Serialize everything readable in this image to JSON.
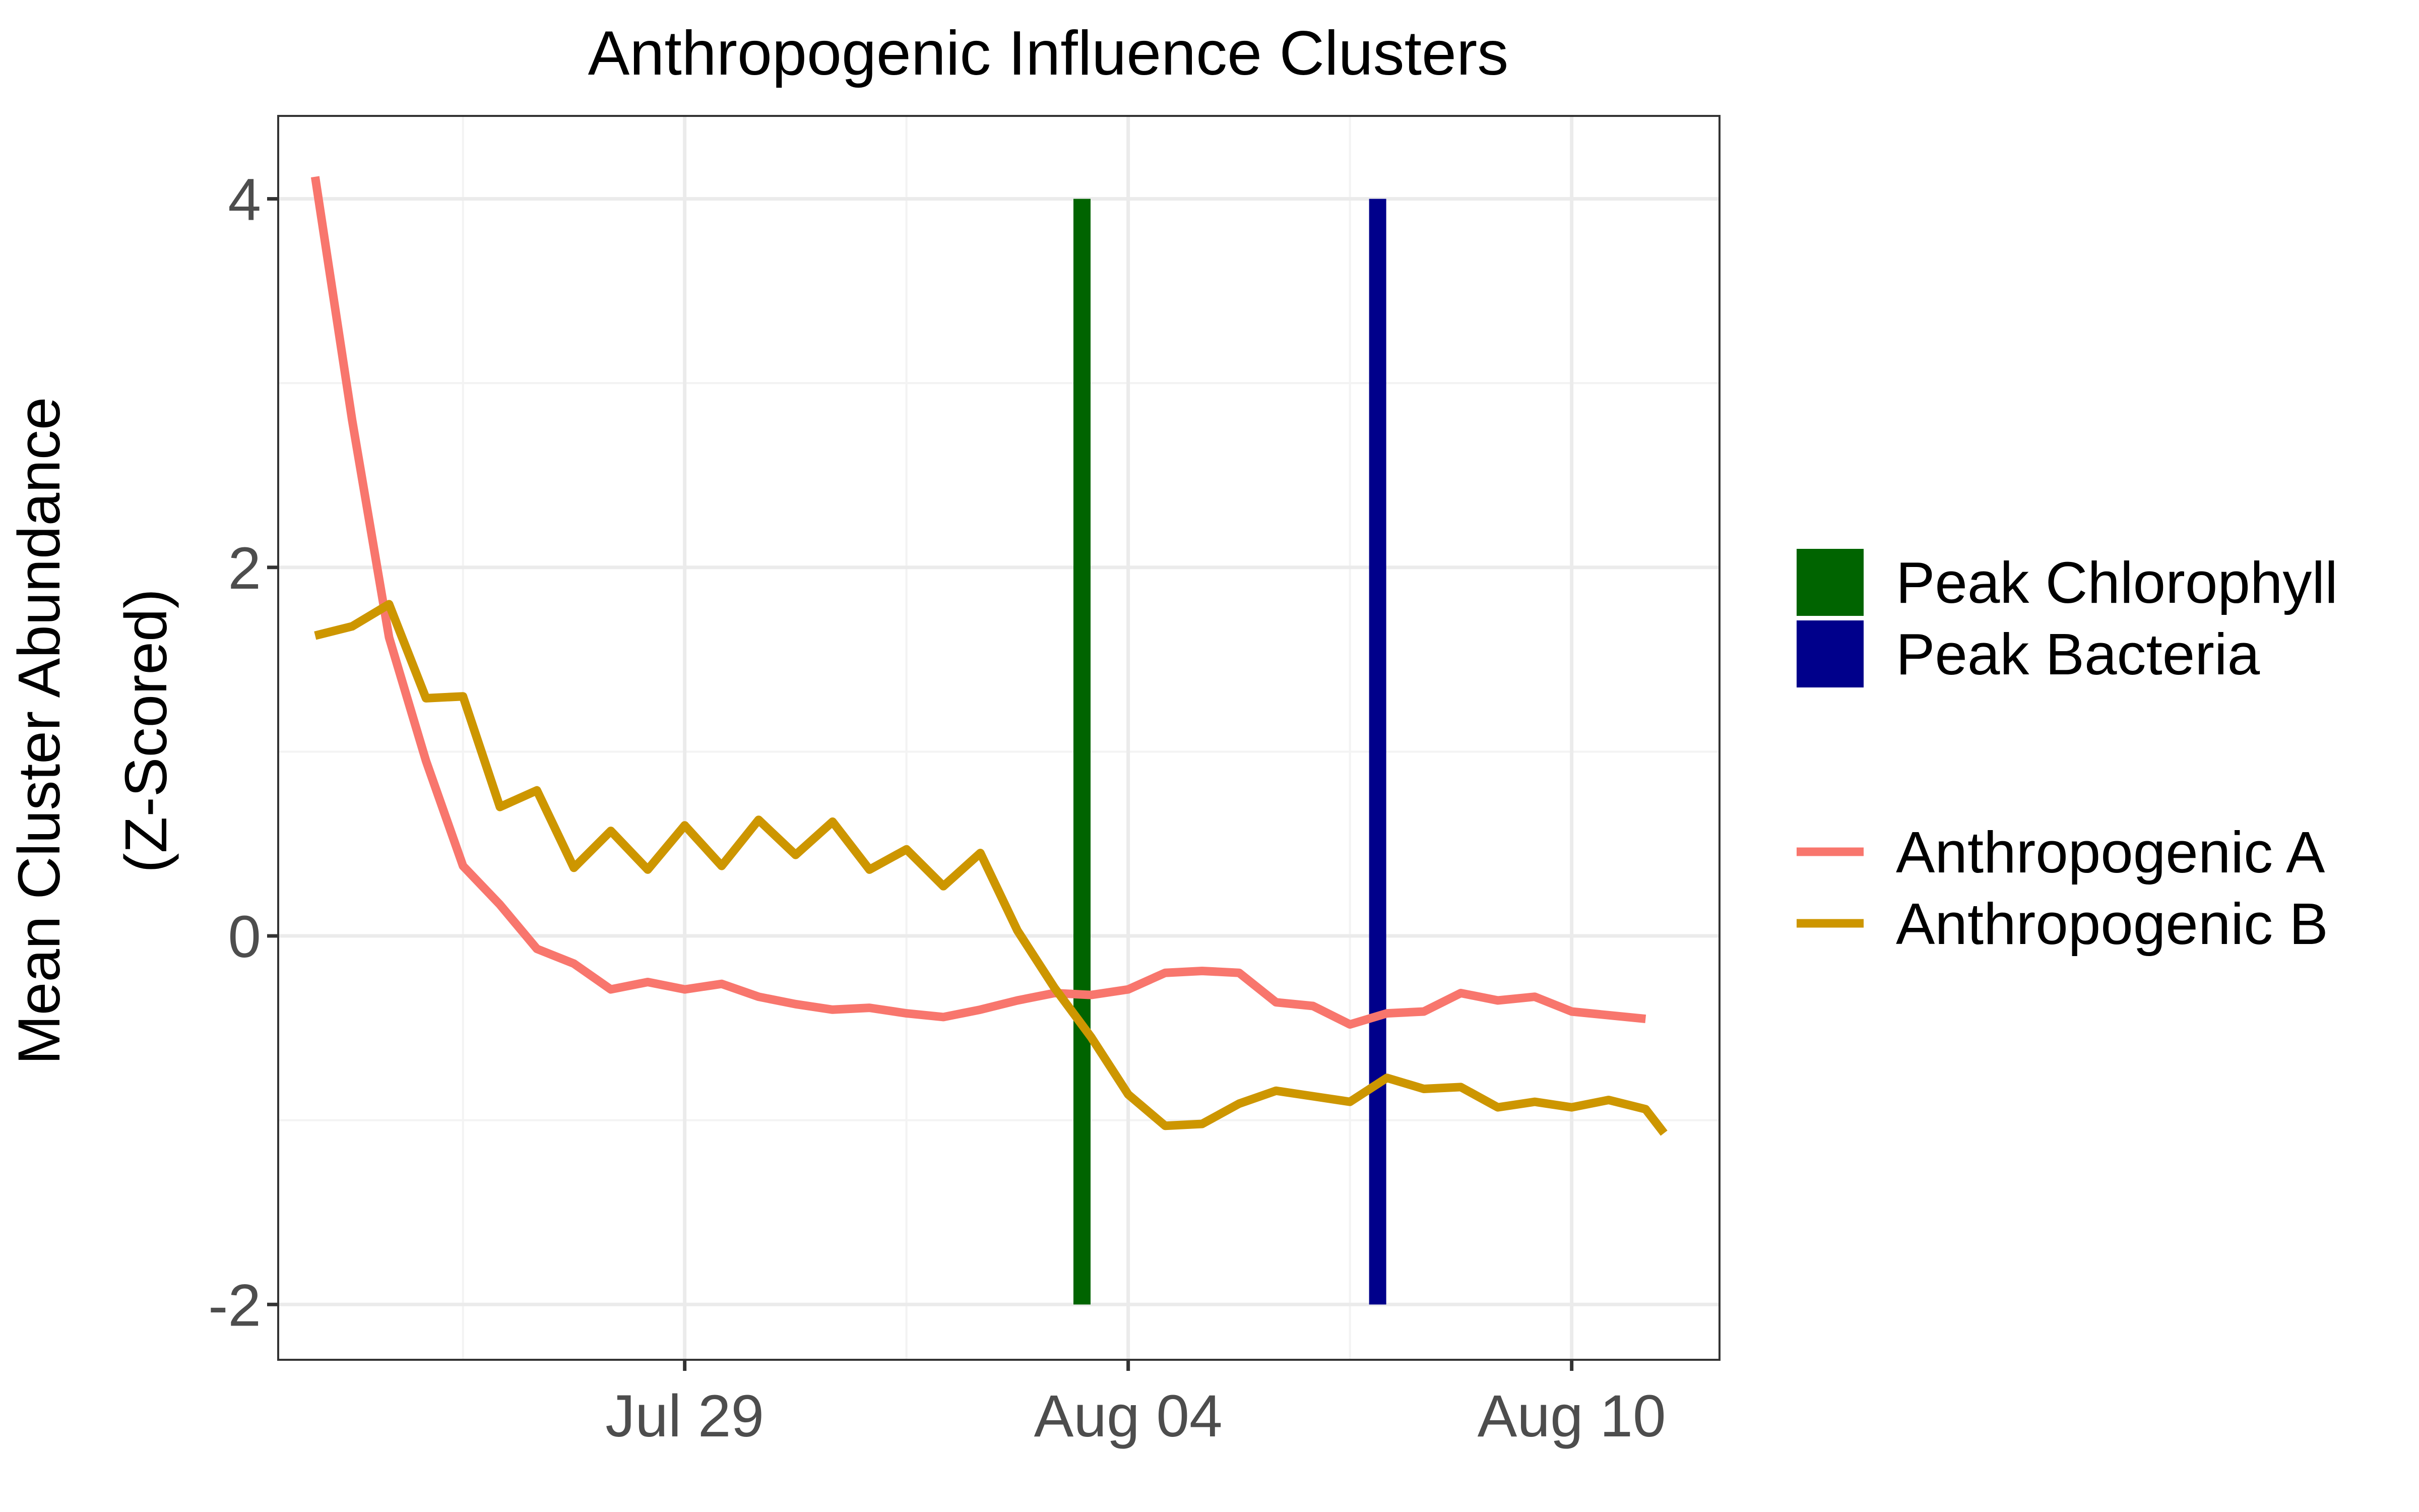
{
  "chart_data": {
    "type": "line",
    "title": "Anthropogenic Influence Clusters",
    "ylabel_lines": [
      "Mean Cluster Abundance",
      "(Z-Scored)"
    ],
    "xlabel": "",
    "x_min": "2023-07-23T12:00",
    "x_max": "2023-08-12T00:00",
    "x_ticks": [
      {
        "date": "2023-07-29",
        "label": "Jul 29"
      },
      {
        "date": "2023-08-04",
        "label": "Aug 04"
      },
      {
        "date": "2023-08-10",
        "label": "Aug 10"
      }
    ],
    "x_minor": [
      "2023-07-26",
      "2023-08-01",
      "2023-08-07"
    ],
    "ylim": [
      -2.3,
      4.45
    ],
    "y_ticks": [
      {
        "value": 4,
        "label": "4"
      },
      {
        "value": 2,
        "label": "2"
      },
      {
        "value": 0,
        "label": "0"
      },
      {
        "value": -2,
        "label": "-2"
      }
    ],
    "y_minor": [
      3,
      1,
      -1
    ],
    "vlines": [
      {
        "name": "Peak Chlorophyll",
        "date": "2023-08-03T09:00",
        "y_from": -2,
        "y_to": 4,
        "color": "#006400"
      },
      {
        "name": "Peak Bacteria",
        "date": "2023-08-07T09:00",
        "y_from": -2,
        "y_to": 4,
        "color": "#00008B"
      }
    ],
    "series": [
      {
        "name": "Anthropogenic A",
        "color": "#F8766D",
        "points": [
          [
            "2023-07-24T00:00",
            4.12
          ],
          [
            "2023-07-24T12:00",
            2.8
          ],
          [
            "2023-07-25T00:00",
            1.62
          ],
          [
            "2023-07-25T12:00",
            0.95
          ],
          [
            "2023-07-26T00:00",
            0.38
          ],
          [
            "2023-07-26T12:00",
            0.17
          ],
          [
            "2023-07-27T00:00",
            -0.07
          ],
          [
            "2023-07-27T12:00",
            -0.15
          ],
          [
            "2023-07-28T00:00",
            -0.29
          ],
          [
            "2023-07-28T12:00",
            -0.25
          ],
          [
            "2023-07-29T00:00",
            -0.29
          ],
          [
            "2023-07-29T12:00",
            -0.26
          ],
          [
            "2023-07-30T00:00",
            -0.33
          ],
          [
            "2023-07-30T12:00",
            -0.37
          ],
          [
            "2023-07-31T00:00",
            -0.4
          ],
          [
            "2023-07-31T12:00",
            -0.39
          ],
          [
            "2023-08-01T00:00",
            -0.42
          ],
          [
            "2023-08-01T12:00",
            -0.44
          ],
          [
            "2023-08-02T00:00",
            -0.4
          ],
          [
            "2023-08-02T12:00",
            -0.35
          ],
          [
            "2023-08-03T00:00",
            -0.31
          ],
          [
            "2023-08-03T12:00",
            -0.32
          ],
          [
            "2023-08-04T00:00",
            -0.29
          ],
          [
            "2023-08-04T12:00",
            -0.2
          ],
          [
            "2023-08-05T00:00",
            -0.19
          ],
          [
            "2023-08-05T12:00",
            -0.2
          ],
          [
            "2023-08-06T00:00",
            -0.36
          ],
          [
            "2023-08-06T12:00",
            -0.38
          ],
          [
            "2023-08-07T00:00",
            -0.48
          ],
          [
            "2023-08-07T12:00",
            -0.42
          ],
          [
            "2023-08-08T00:00",
            -0.41
          ],
          [
            "2023-08-08T12:00",
            -0.31
          ],
          [
            "2023-08-09T00:00",
            -0.35
          ],
          [
            "2023-08-09T12:00",
            -0.33
          ],
          [
            "2023-08-10T00:00",
            -0.41
          ],
          [
            "2023-08-10T12:00",
            -0.43
          ],
          [
            "2023-08-11T00:00",
            -0.45
          ]
        ]
      },
      {
        "name": "Anthropogenic B",
        "color": "#CD9600",
        "points": [
          [
            "2023-07-24T00:00",
            1.63
          ],
          [
            "2023-07-24T12:00",
            1.68
          ],
          [
            "2023-07-25T00:00",
            1.8
          ],
          [
            "2023-07-25T12:00",
            1.29
          ],
          [
            "2023-07-26T00:00",
            1.3
          ],
          [
            "2023-07-26T12:00",
            0.7
          ],
          [
            "2023-07-27T00:00",
            0.79
          ],
          [
            "2023-07-27T12:00",
            0.37
          ],
          [
            "2023-07-28T00:00",
            0.57
          ],
          [
            "2023-07-28T12:00",
            0.36
          ],
          [
            "2023-07-29T00:00",
            0.6
          ],
          [
            "2023-07-29T12:00",
            0.38
          ],
          [
            "2023-07-30T00:00",
            0.63
          ],
          [
            "2023-07-30T12:00",
            0.44
          ],
          [
            "2023-07-31T00:00",
            0.62
          ],
          [
            "2023-07-31T12:00",
            0.36
          ],
          [
            "2023-08-01T00:00",
            0.47
          ],
          [
            "2023-08-01T12:00",
            0.27
          ],
          [
            "2023-08-02T00:00",
            0.45
          ],
          [
            "2023-08-02T12:00",
            0.03
          ],
          [
            "2023-08-03T00:00",
            -0.28
          ],
          [
            "2023-08-03T12:00",
            -0.55
          ],
          [
            "2023-08-04T00:00",
            -0.86
          ],
          [
            "2023-08-04T12:00",
            -1.03
          ],
          [
            "2023-08-05T00:00",
            -1.02
          ],
          [
            "2023-08-05T12:00",
            -0.91
          ],
          [
            "2023-08-06T00:00",
            -0.84
          ],
          [
            "2023-08-06T12:00",
            -0.87
          ],
          [
            "2023-08-07T00:00",
            -0.9
          ],
          [
            "2023-08-07T12:00",
            -0.77
          ],
          [
            "2023-08-08T00:00",
            -0.83
          ],
          [
            "2023-08-08T12:00",
            -0.82
          ],
          [
            "2023-08-09T00:00",
            -0.93
          ],
          [
            "2023-08-09T12:00",
            -0.9
          ],
          [
            "2023-08-10T00:00",
            -0.93
          ],
          [
            "2023-08-10T12:00",
            -0.89
          ],
          [
            "2023-08-11T00:00",
            -0.94
          ],
          [
            "2023-08-11T06:00",
            -1.07
          ]
        ]
      }
    ],
    "grid": true,
    "legend": {
      "position": "right",
      "vline_entries": [
        "Peak Chlorophyll",
        "Peak Bacteria"
      ],
      "line_entries": [
        "Anthropogenic A",
        "Anthropogenic B"
      ]
    }
  }
}
